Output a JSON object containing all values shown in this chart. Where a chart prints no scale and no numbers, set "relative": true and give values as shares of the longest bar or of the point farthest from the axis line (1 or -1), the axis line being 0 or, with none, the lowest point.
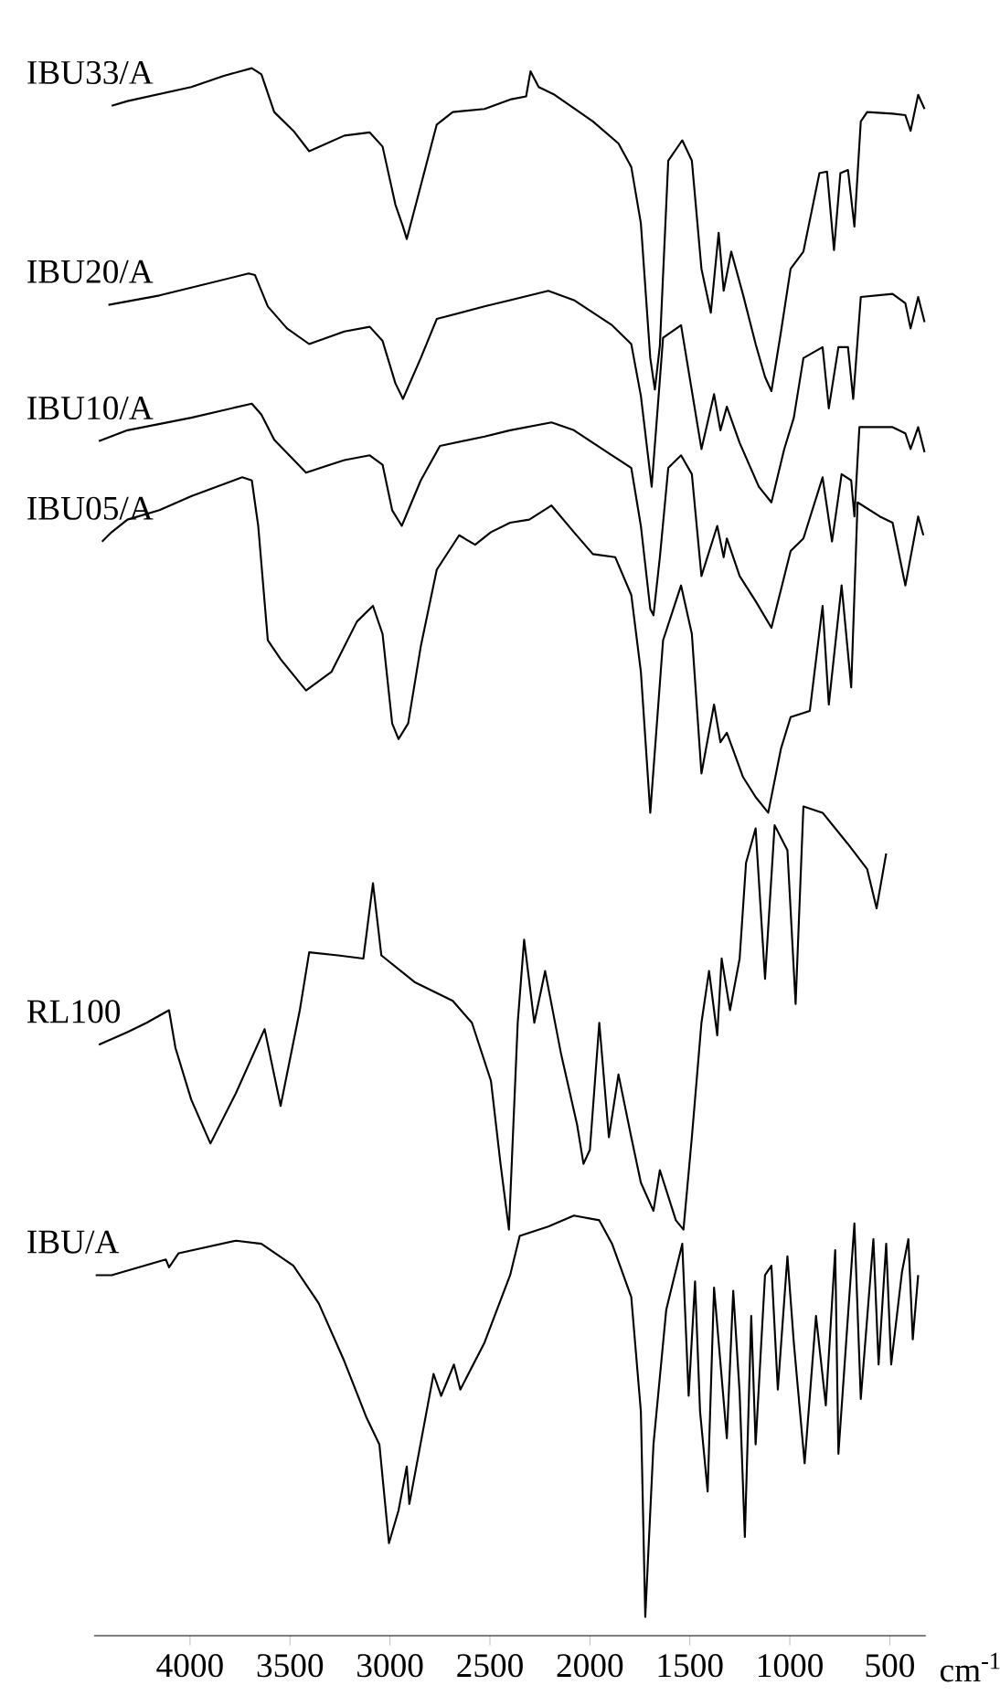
{
  "chart_data": {
    "type": "line",
    "relative": true,
    "xlabel": "cm$^{-1}$",
    "xlim": [
      4480,
      320
    ],
    "xticks": [
      4000,
      3500,
      3000,
      2500,
      2000,
      1500,
      1000,
      500
    ],
    "series": [
      {
        "name": "IBU33/A",
        "color": "#000000",
        "x": [
          4392,
          4313,
          3994,
          3834,
          3691,
          3643,
          3579,
          3483,
          3404,
          3228,
          3101,
          3037,
          2973,
          2935,
          2916,
          2846,
          2766,
          2686,
          2527,
          2399,
          2319,
          2297,
          2256,
          2176,
          1985,
          1857,
          1793,
          1745,
          1698,
          1675,
          1650,
          1608,
          1538,
          1490,
          1442,
          1395,
          1356,
          1331,
          1293,
          1235,
          1171,
          1124,
          1092,
          1044,
          996,
          932,
          852,
          814,
          779,
          747,
          709,
          677,
          645,
          613,
          486,
          422,
          396,
          358,
          326
        ],
        "values": [
          0.976,
          0.979,
          0.988,
          0.995,
          1.0,
          0.996,
          0.972,
          0.96,
          0.947,
          0.957,
          0.959,
          0.95,
          0.913,
          0.899,
          0.891,
          0.925,
          0.964,
          0.972,
          0.974,
          0.98,
          0.982,
          0.998,
          0.988,
          0.983,
          0.966,
          0.952,
          0.937,
          0.901,
          0.815,
          0.795,
          0.823,
          0.941,
          0.954,
          0.941,
          0.872,
          0.844,
          0.895,
          0.858,
          0.883,
          0.856,
          0.824,
          0.803,
          0.794,
          0.832,
          0.872,
          0.883,
          0.933,
          0.934,
          0.884,
          0.933,
          0.935,
          0.899,
          0.966,
          0.972,
          0.971,
          0.97,
          0.96,
          0.983,
          0.974
        ]
      },
      {
        "name": "IBU20/A",
        "color": "#000000",
        "x": [
          4408,
          4153,
          3994,
          3707,
          3675,
          3611,
          3515,
          3404,
          3228,
          3101,
          3037,
          2973,
          2935,
          2846,
          2766,
          2527,
          2399,
          2208,
          2080,
          1889,
          1793,
          1745,
          1691,
          1634,
          1544,
          1442,
          1379,
          1347,
          1315,
          1251,
          1155,
          1092,
          1028,
          980,
          932,
          836,
          805,
          757,
          709,
          683,
          645,
          486,
          422,
          396,
          358,
          326
        ],
        "values": [
          0.849,
          0.855,
          0.86,
          0.869,
          0.868,
          0.848,
          0.834,
          0.824,
          0.832,
          0.835,
          0.826,
          0.799,
          0.789,
          0.815,
          0.84,
          0.848,
          0.852,
          0.858,
          0.852,
          0.836,
          0.824,
          0.791,
          0.733,
          0.828,
          0.836,
          0.757,
          0.792,
          0.769,
          0.784,
          0.761,
          0.733,
          0.723,
          0.757,
          0.777,
          0.815,
          0.822,
          0.783,
          0.822,
          0.822,
          0.789,
          0.854,
          0.856,
          0.85,
          0.834,
          0.854,
          0.838
        ]
      },
      {
        "name": "IBU10/A",
        "color": "#000000",
        "x": [
          4456,
          4313,
          3994,
          3691,
          3643,
          3579,
          3420,
          3228,
          3101,
          3037,
          2989,
          2941,
          2846,
          2750,
          2527,
          2399,
          2192,
          2080,
          1889,
          1793,
          1745,
          1698,
          1682,
          1650,
          1608,
          1544,
          1490,
          1442,
          1363,
          1331,
          1315,
          1251,
          1171,
          1092,
          996,
          932,
          836,
          789,
          741,
          693,
          677,
          652,
          486,
          422,
          396,
          358,
          326
        ],
        "values": [
          0.762,
          0.769,
          0.777,
          0.786,
          0.779,
          0.763,
          0.742,
          0.75,
          0.753,
          0.747,
          0.718,
          0.708,
          0.737,
          0.759,
          0.765,
          0.769,
          0.774,
          0.769,
          0.753,
          0.745,
          0.708,
          0.655,
          0.651,
          0.688,
          0.745,
          0.753,
          0.741,
          0.676,
          0.708,
          0.688,
          0.7,
          0.676,
          0.66,
          0.643,
          0.692,
          0.7,
          0.739,
          0.698,
          0.741,
          0.737,
          0.714,
          0.771,
          0.771,
          0.767,
          0.757,
          0.771,
          0.755
        ]
      },
      {
        "name": "IBU05/A",
        "color": "#000000",
        "x": [
          4440,
          4392,
          4313,
          4153,
          3994,
          3739,
          3691,
          3659,
          3611,
          3547,
          3420,
          3292,
          3165,
          3085,
          3037,
          2989,
          2957,
          2909,
          2846,
          2766,
          2654,
          2574,
          2495,
          2399,
          2303,
          2192,
          2080,
          1985,
          1873,
          1793,
          1745,
          1698,
          1634,
          1544,
          1490,
          1442,
          1379,
          1347,
          1315,
          1235,
          1171,
          1108,
          1044,
          996,
          900,
          836,
          805,
          741,
          693,
          661,
          550,
          486,
          422,
          358,
          332
        ],
        "values": [
          0.698,
          0.704,
          0.712,
          0.718,
          0.727,
          0.739,
          0.737,
          0.708,
          0.635,
          0.623,
          0.603,
          0.615,
          0.647,
          0.657,
          0.639,
          0.582,
          0.572,
          0.582,
          0.631,
          0.68,
          0.702,
          0.696,
          0.704,
          0.71,
          0.712,
          0.721,
          0.704,
          0.69,
          0.688,
          0.664,
          0.615,
          0.525,
          0.635,
          0.67,
          0.639,
          0.55,
          0.594,
          0.57,
          0.576,
          0.548,
          0.535,
          0.525,
          0.566,
          0.586,
          0.59,
          0.657,
          0.594,
          0.67,
          0.605,
          0.723,
          0.714,
          0.71,
          0.67,
          0.714,
          0.702
        ]
      },
      {
        "name": "RL100",
        "color": "#000000",
        "x": [
          4456,
          4313,
          4217,
          4105,
          4073,
          3994,
          3898,
          3771,
          3627,
          3547,
          3451,
          3404,
          3260,
          3133,
          3085,
          3043,
          2877,
          2686,
          2590,
          2495,
          2447,
          2405,
          2361,
          2329,
          2278,
          2224,
          2144,
          2064,
          2032,
          2000,
          1953,
          1905,
          1857,
          1793,
          1745,
          1682,
          1650,
          1570,
          1532,
          1490,
          1442,
          1404,
          1363,
          1341,
          1299,
          1251,
          1219,
          1171,
          1124,
          1076,
          1012,
          971,
          932,
          836,
          709,
          613,
          566,
          518
        ],
        "values": [
          0.377,
          0.385,
          0.391,
          0.399,
          0.375,
          0.342,
          0.314,
          0.346,
          0.387,
          0.338,
          0.399,
          0.436,
          0.434,
          0.432,
          0.48,
          0.434,
          0.417,
          0.405,
          0.391,
          0.354,
          0.301,
          0.259,
          0.391,
          0.444,
          0.391,
          0.424,
          0.371,
          0.326,
          0.301,
          0.31,
          0.391,
          0.318,
          0.358,
          0.318,
          0.289,
          0.271,
          0.297,
          0.265,
          0.259,
          0.318,
          0.391,
          0.424,
          0.383,
          0.432,
          0.399,
          0.432,
          0.493,
          0.515,
          0.419,
          0.517,
          0.501,
          0.403,
          0.529,
          0.525,
          0.505,
          0.489,
          0.464,
          0.499
        ]
      },
      {
        "name": "IBU/A",
        "color": "#000000",
        "x": [
          4472,
          4392,
          4121,
          4105,
          4057,
          3770,
          3643,
          3483,
          3356,
          3228,
          3117,
          3053,
          3005,
          2957,
          2916,
          2903,
          2782,
          2744,
          2680,
          2648,
          2527,
          2399,
          2351,
          2208,
          2080,
          1953,
          1889,
          1793,
          1745,
          1723,
          1682,
          1618,
          1538,
          1506,
          1474,
          1449,
          1411,
          1379,
          1315,
          1283,
          1251,
          1225,
          1193,
          1171,
          1124,
          1092,
          1060,
          1012,
          980,
          926,
          869,
          820,
          773,
          757,
          677,
          645,
          582,
          556,
          518,
          493,
          439,
          407,
          385,
          358
        ],
        "values": [
          0.23,
          0.23,
          0.24,
          0.235,
          0.244,
          0.252,
          0.25,
          0.236,
          0.212,
          0.175,
          0.139,
          0.122,
          0.059,
          0.08,
          0.108,
          0.084,
          0.167,
          0.153,
          0.173,
          0.157,
          0.187,
          0.23,
          0.255,
          0.261,
          0.268,
          0.265,
          0.25,
          0.216,
          0.143,
          0.012,
          0.122,
          0.208,
          0.25,
          0.153,
          0.226,
          0.143,
          0.092,
          0.222,
          0.126,
          0.22,
          0.155,
          0.063,
          0.204,
          0.122,
          0.23,
          0.236,
          0.157,
          0.242,
          0.187,
          0.11,
          0.204,
          0.147,
          0.246,
          0.116,
          0.263,
          0.151,
          0.253,
          0.173,
          0.25,
          0.173,
          0.232,
          0.253,
          0.189,
          0.23
        ]
      }
    ]
  }
}
